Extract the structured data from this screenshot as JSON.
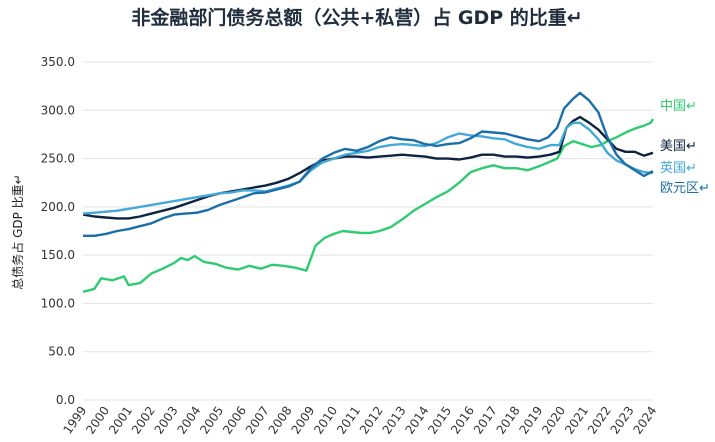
{
  "chart_data": {
    "type": "line",
    "title": "非金融部门债务总额（公共+私营）占 GDP 的比重↵",
    "ylabel": "总债务占 GDP 比重↵",
    "xlabel": "",
    "ylim": [
      0,
      350
    ],
    "yticks": [
      "0.0",
      "50.0",
      "100.0",
      "150.0",
      "200.0",
      "250.0",
      "300.0",
      "350.0"
    ],
    "ytick_values": [
      0,
      50,
      100,
      150,
      200,
      250,
      300,
      350
    ],
    "xlim": [
      1999,
      2024
    ],
    "xticks": [
      "1999",
      "2000",
      "2001",
      "2002",
      "2003",
      "2004",
      "2005",
      "2006",
      "2007",
      "2008",
      "2009",
      "2010",
      "2011",
      "2012",
      "2013",
      "2014",
      "2015",
      "2016",
      "2017",
      "2018",
      "2019",
      "2020",
      "2021",
      "2022",
      "2023",
      "2024"
    ],
    "grid": "horizontal",
    "legend_placement": "right",
    "series": [
      {
        "name": "中国↵",
        "color": "#2ecc71",
        "points": [
          [
            1999,
            112
          ],
          [
            1999.5,
            115
          ],
          [
            1999.8,
            126
          ],
          [
            2000.3,
            124
          ],
          [
            2000.8,
            128
          ],
          [
            2001.0,
            119
          ],
          [
            2001.5,
            121
          ],
          [
            2002.0,
            131
          ],
          [
            2002.5,
            136
          ],
          [
            2003.0,
            142
          ],
          [
            2003.3,
            147
          ],
          [
            2003.6,
            145
          ],
          [
            2003.9,
            149
          ],
          [
            2004.3,
            143
          ],
          [
            2004.8,
            141
          ],
          [
            2005.3,
            137
          ],
          [
            2005.8,
            135
          ],
          [
            2006.3,
            139
          ],
          [
            2006.8,
            136
          ],
          [
            2007.3,
            140
          ],
          [
            2007.8,
            139
          ],
          [
            2008.3,
            137
          ],
          [
            2008.8,
            134
          ],
          [
            2009.2,
            160
          ],
          [
            2009.6,
            168
          ],
          [
            2010.0,
            172
          ],
          [
            2010.4,
            175
          ],
          [
            2010.8,
            174
          ],
          [
            2011.2,
            173
          ],
          [
            2011.6,
            173
          ],
          [
            2012.0,
            175
          ],
          [
            2012.5,
            179
          ],
          [
            2013.0,
            187
          ],
          [
            2013.5,
            196
          ],
          [
            2014.0,
            203
          ],
          [
            2014.5,
            210
          ],
          [
            2015.0,
            216
          ],
          [
            2015.5,
            225
          ],
          [
            2016.0,
            236
          ],
          [
            2016.5,
            240
          ],
          [
            2017.0,
            243
          ],
          [
            2017.5,
            240
          ],
          [
            2018.0,
            240
          ],
          [
            2018.5,
            238
          ],
          [
            2019.0,
            242
          ],
          [
            2019.5,
            247
          ],
          [
            2019.8,
            250
          ],
          [
            2020.1,
            263
          ],
          [
            2020.5,
            268
          ],
          [
            2020.9,
            265
          ],
          [
            2021.3,
            262
          ],
          [
            2021.7,
            264
          ],
          [
            2022.0,
            268
          ],
          [
            2022.4,
            272
          ],
          [
            2022.8,
            277
          ],
          [
            2023.2,
            281
          ],
          [
            2023.6,
            284
          ],
          [
            2023.9,
            287
          ],
          [
            2024.0,
            291
          ]
        ]
      },
      {
        "name": "美国↵",
        "color": "#0d2340",
        "points": [
          [
            1999,
            192
          ],
          [
            1999.5,
            190
          ],
          [
            2000.0,
            189
          ],
          [
            2000.5,
            188
          ],
          [
            2001.0,
            188
          ],
          [
            2001.5,
            190
          ],
          [
            2002.0,
            193
          ],
          [
            2002.5,
            196
          ],
          [
            2003.0,
            199
          ],
          [
            2003.5,
            203
          ],
          [
            2004.0,
            207
          ],
          [
            2004.5,
            211
          ],
          [
            2005.0,
            214
          ],
          [
            2005.5,
            216
          ],
          [
            2006.0,
            218
          ],
          [
            2006.5,
            220
          ],
          [
            2007.0,
            222
          ],
          [
            2007.5,
            225
          ],
          [
            2008.0,
            229
          ],
          [
            2008.5,
            235
          ],
          [
            2009.0,
            242
          ],
          [
            2009.5,
            248
          ],
          [
            2010.0,
            250
          ],
          [
            2010.5,
            252
          ],
          [
            2011.0,
            252
          ],
          [
            2011.5,
            251
          ],
          [
            2012.0,
            252
          ],
          [
            2012.5,
            253
          ],
          [
            2013.0,
            254
          ],
          [
            2013.5,
            253
          ],
          [
            2014.0,
            252
          ],
          [
            2014.5,
            250
          ],
          [
            2015.0,
            250
          ],
          [
            2015.5,
            249
          ],
          [
            2016.0,
            251
          ],
          [
            2016.5,
            254
          ],
          [
            2017.0,
            254
          ],
          [
            2017.5,
            252
          ],
          [
            2018.0,
            252
          ],
          [
            2018.5,
            251
          ],
          [
            2019.0,
            252
          ],
          [
            2019.5,
            254
          ],
          [
            2019.9,
            257
          ],
          [
            2020.2,
            282
          ],
          [
            2020.5,
            289
          ],
          [
            2020.8,
            293
          ],
          [
            2021.2,
            287
          ],
          [
            2021.6,
            280
          ],
          [
            2022.0,
            270
          ],
          [
            2022.4,
            260
          ],
          [
            2022.8,
            257
          ],
          [
            2023.2,
            257
          ],
          [
            2023.6,
            253
          ],
          [
            2024.0,
            256
          ]
        ]
      },
      {
        "name": "英国↵",
        "color": "#44a8d8",
        "points": [
          [
            1999,
            193
          ],
          [
            1999.5,
            194
          ],
          [
            2000.0,
            195
          ],
          [
            2000.5,
            196
          ],
          [
            2001.0,
            198
          ],
          [
            2001.5,
            200
          ],
          [
            2002.0,
            202
          ],
          [
            2002.5,
            204
          ],
          [
            2003.0,
            206
          ],
          [
            2003.5,
            208
          ],
          [
            2004.0,
            210
          ],
          [
            2004.5,
            212
          ],
          [
            2005.0,
            214
          ],
          [
            2005.5,
            215
          ],
          [
            2006.0,
            217
          ],
          [
            2006.5,
            217
          ],
          [
            2007.0,
            216
          ],
          [
            2007.5,
            219
          ],
          [
            2008.0,
            222
          ],
          [
            2008.5,
            226
          ],
          [
            2009.0,
            238
          ],
          [
            2009.5,
            246
          ],
          [
            2010.0,
            250
          ],
          [
            2010.5,
            254
          ],
          [
            2011.0,
            256
          ],
          [
            2011.5,
            258
          ],
          [
            2012.0,
            262
          ],
          [
            2012.5,
            264
          ],
          [
            2013.0,
            265
          ],
          [
            2013.5,
            264
          ],
          [
            2014.0,
            263
          ],
          [
            2014.5,
            266
          ],
          [
            2015.0,
            272
          ],
          [
            2015.5,
            276
          ],
          [
            2016.0,
            274
          ],
          [
            2016.5,
            273
          ],
          [
            2017.0,
            271
          ],
          [
            2017.5,
            270
          ],
          [
            2018.0,
            265
          ],
          [
            2018.5,
            262
          ],
          [
            2019.0,
            260
          ],
          [
            2019.5,
            264
          ],
          [
            2019.9,
            264
          ],
          [
            2020.2,
            282
          ],
          [
            2020.5,
            287
          ],
          [
            2020.8,
            287
          ],
          [
            2021.2,
            280
          ],
          [
            2021.6,
            270
          ],
          [
            2022.0,
            256
          ],
          [
            2022.4,
            248
          ],
          [
            2022.8,
            244
          ],
          [
            2023.2,
            239
          ],
          [
            2023.6,
            236
          ],
          [
            2024.0,
            235
          ]
        ]
      },
      {
        "name": "欧元区↵",
        "color": "#1b6fa8",
        "points": [
          [
            1999,
            170
          ],
          [
            1999.5,
            170
          ],
          [
            2000.0,
            172
          ],
          [
            2000.5,
            175
          ],
          [
            2001.0,
            177
          ],
          [
            2001.5,
            180
          ],
          [
            2002.0,
            183
          ],
          [
            2002.5,
            188
          ],
          [
            2003.0,
            192
          ],
          [
            2003.5,
            193
          ],
          [
            2004.0,
            194
          ],
          [
            2004.5,
            197
          ],
          [
            2005.0,
            202
          ],
          [
            2005.5,
            206
          ],
          [
            2006.0,
            210
          ],
          [
            2006.5,
            214
          ],
          [
            2007.0,
            215
          ],
          [
            2007.5,
            218
          ],
          [
            2008.0,
            221
          ],
          [
            2008.5,
            226
          ],
          [
            2009.0,
            240
          ],
          [
            2009.5,
            250
          ],
          [
            2010.0,
            256
          ],
          [
            2010.5,
            260
          ],
          [
            2011.0,
            258
          ],
          [
            2011.5,
            262
          ],
          [
            2012.0,
            268
          ],
          [
            2012.5,
            272
          ],
          [
            2013.0,
            270
          ],
          [
            2013.5,
            269
          ],
          [
            2014.0,
            265
          ],
          [
            2014.5,
            263
          ],
          [
            2015.0,
            265
          ],
          [
            2015.5,
            266
          ],
          [
            2016.0,
            271
          ],
          [
            2016.5,
            278
          ],
          [
            2017.0,
            277
          ],
          [
            2017.5,
            276
          ],
          [
            2018.0,
            273
          ],
          [
            2018.5,
            270
          ],
          [
            2019.0,
            268
          ],
          [
            2019.4,
            272
          ],
          [
            2019.8,
            282
          ],
          [
            2020.1,
            302
          ],
          [
            2020.5,
            312
          ],
          [
            2020.8,
            318
          ],
          [
            2021.2,
            310
          ],
          [
            2021.6,
            298
          ],
          [
            2022.0,
            272
          ],
          [
            2022.4,
            254
          ],
          [
            2022.8,
            244
          ],
          [
            2023.2,
            238
          ],
          [
            2023.6,
            232
          ],
          [
            2024.0,
            237
          ]
        ]
      }
    ]
  }
}
